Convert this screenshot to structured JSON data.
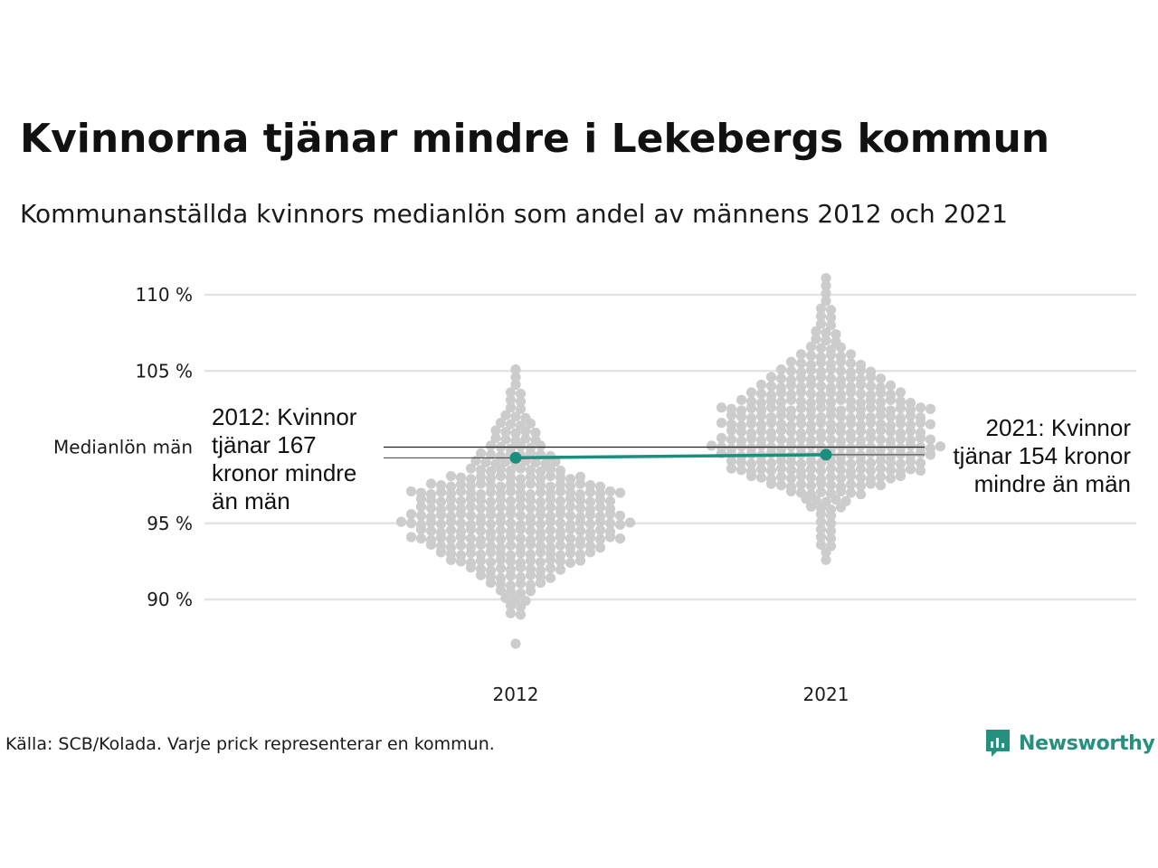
{
  "title": "Kvinnorna tjänar mindre i Lekebergs kommun",
  "subtitle": "Kommunanställda kvinnors medianlön som andel av männens 2012 och 2021",
  "source": "Källa: SCB/Kolada. Varje prick representerar en kommun.",
  "logo": {
    "text": "Newsworthy",
    "icon": "newsworthy-logo-icon",
    "color": "#26907f"
  },
  "chart_data": {
    "type": "scatter",
    "subtype": "beeswarm",
    "categories": [
      "2012",
      "2021"
    ],
    "y_ticks": [
      {
        "value": 110,
        "label": "110 %"
      },
      {
        "value": 105,
        "label": "105 %"
      },
      {
        "value": 95,
        "label": "95 %"
      },
      {
        "value": 90,
        "label": "90 %"
      }
    ],
    "reference_line": {
      "value": 100,
      "label": "Medianlön män"
    },
    "ylim": [
      86,
      111.5
    ],
    "grid": true,
    "highlight": {
      "color": "#1b8f7d",
      "points": [
        {
          "category": "2012",
          "value": 99.3
        },
        {
          "category": "2021",
          "value": 99.5
        }
      ]
    },
    "annotations": [
      {
        "category": "2012",
        "lines": [
          "2012: Kvinnor",
          "tjänar 167",
          "kronor mindre",
          "än män"
        ]
      },
      {
        "category": "2021",
        "lines": [
          "2021: Kvinnor",
          "tjänar 154 kronor",
          "mindre än män"
        ]
      }
    ],
    "dot_color": "#cccccc",
    "distributions": [
      {
        "category": "2012",
        "bins": [
          [
            87,
            1
          ],
          [
            89,
            2
          ],
          [
            89.5,
            2
          ],
          [
            90,
            3
          ],
          [
            90.5,
            4
          ],
          [
            91,
            6
          ],
          [
            91.5,
            8
          ],
          [
            92,
            10
          ],
          [
            92.5,
            14
          ],
          [
            93,
            16
          ],
          [
            93.5,
            18
          ],
          [
            94,
            22
          ],
          [
            94.5,
            20
          ],
          [
            95,
            24
          ],
          [
            95.5,
            22
          ],
          [
            96,
            20
          ],
          [
            96.5,
            20
          ],
          [
            97,
            22
          ],
          [
            97.5,
            18
          ],
          [
            98,
            14
          ],
          [
            98.5,
            10
          ],
          [
            99,
            9
          ],
          [
            99.5,
            8
          ],
          [
            100,
            6
          ],
          [
            100.5,
            5
          ],
          [
            101,
            5
          ],
          [
            101.5,
            4
          ],
          [
            102,
            3
          ],
          [
            102.5,
            2
          ],
          [
            103,
            2
          ],
          [
            103.5,
            2
          ],
          [
            104,
            1
          ],
          [
            104.5,
            1
          ],
          [
            105,
            1
          ]
        ]
      },
      {
        "category": "2021",
        "bins": [
          [
            92.5,
            1
          ],
          [
            93,
            1
          ],
          [
            93.5,
            2
          ],
          [
            94,
            2
          ],
          [
            94.5,
            2
          ],
          [
            95,
            2
          ],
          [
            95.5,
            2
          ],
          [
            96,
            4
          ],
          [
            96.5,
            5
          ],
          [
            97,
            8
          ],
          [
            97.5,
            12
          ],
          [
            98,
            16
          ],
          [
            98.5,
            20
          ],
          [
            99,
            20
          ],
          [
            99.5,
            22
          ],
          [
            100,
            24
          ],
          [
            100.5,
            22
          ],
          [
            101,
            20
          ],
          [
            101.5,
            22
          ],
          [
            102,
            20
          ],
          [
            102.5,
            22
          ],
          [
            103,
            18
          ],
          [
            103.5,
            16
          ],
          [
            104,
            14
          ],
          [
            104.5,
            12
          ],
          [
            105,
            10
          ],
          [
            105.5,
            8
          ],
          [
            106,
            6
          ],
          [
            106.5,
            4
          ],
          [
            107,
            3
          ],
          [
            107.5,
            3
          ],
          [
            108,
            2
          ],
          [
            108.5,
            2
          ],
          [
            109,
            2
          ],
          [
            109.5,
            1
          ],
          [
            110,
            1
          ],
          [
            110.5,
            1
          ],
          [
            111,
            1
          ]
        ]
      }
    ]
  }
}
